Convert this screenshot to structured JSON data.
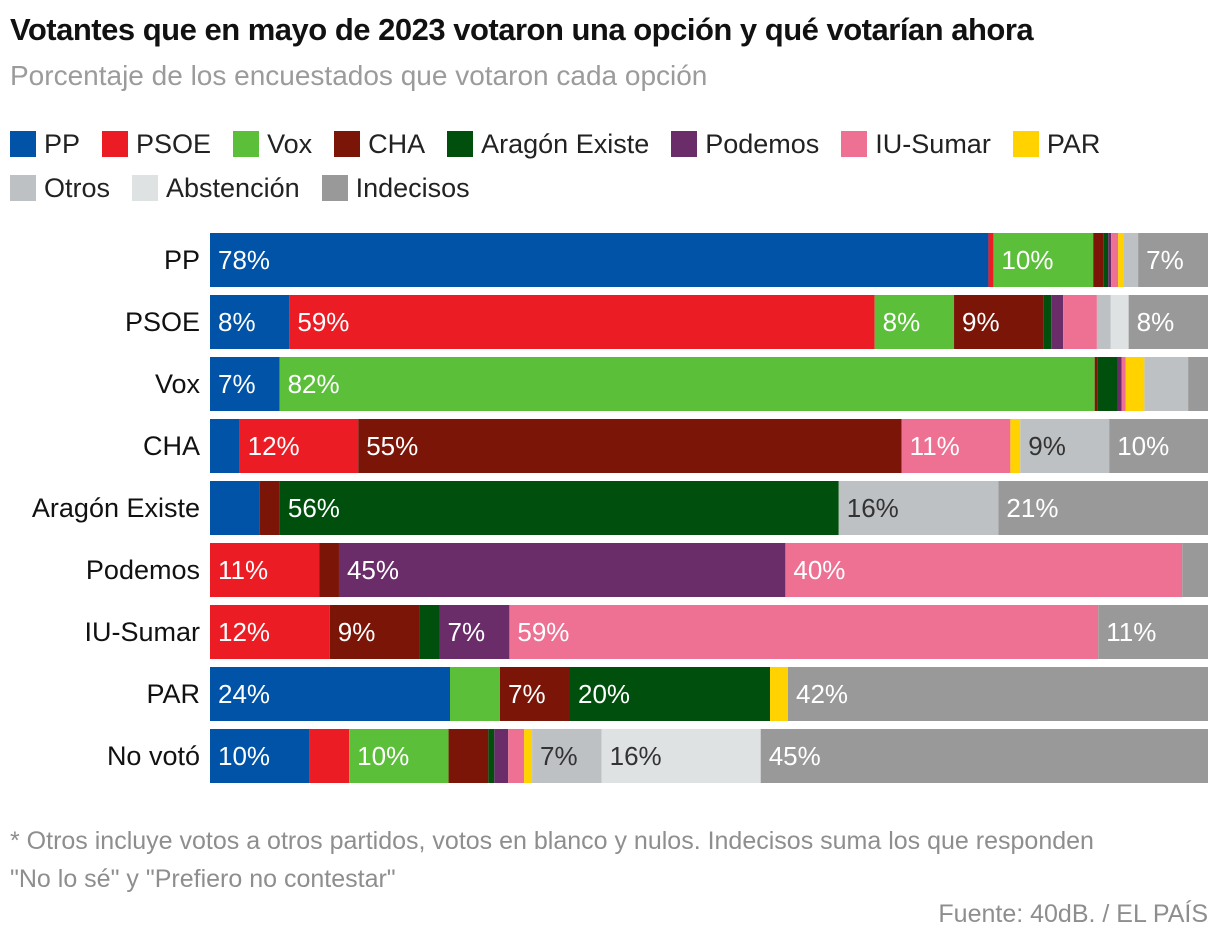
{
  "title": "Votantes que en mayo de 2023 votaron una opción y qué votarían ahora",
  "subtitle": "Porcentaje de los encuestados que votaron cada opción",
  "note": "* Otros incluye votos a otros partidos, votos en blanco y nulos. Indecisos suma los que responden \"No lo sé\" y \"Prefiero no contestar\"",
  "source": "Fuente: 40dB. / EL PAÍS",
  "legend_rows": [
    [
      0,
      1,
      2,
      3,
      4,
      5,
      6,
      7
    ],
    [
      8,
      9,
      10
    ]
  ],
  "chart_data": {
    "type": "bar",
    "orientation": "horizontal",
    "stacked": true,
    "xlim": [
      0,
      100
    ],
    "title": "Votantes que en mayo de 2023 votaron una opción y qué votarían ahora",
    "subtitle": "Porcentaje de los encuestados que votaron cada opción",
    "legend_position": "top",
    "categories": [
      "PP",
      "PSOE",
      "Vox",
      "CHA",
      "Aragón Existe",
      "Podemos",
      "IU-Sumar",
      "PAR",
      "No votó"
    ],
    "series": [
      {
        "name": "PP",
        "color": "#0053a6",
        "values": [
          78,
          8,
          7,
          3,
          5,
          0,
          0,
          24,
          10
        ]
      },
      {
        "name": "PSOE",
        "color": "#ec1c24",
        "values": [
          0.5,
          59,
          0,
          12,
          0,
          11,
          12,
          0,
          4
        ]
      },
      {
        "name": "Vox",
        "color": "#5bbf3a",
        "values": [
          10,
          8,
          82,
          0,
          0,
          0,
          0,
          5,
          10
        ]
      },
      {
        "name": "CHA",
        "color": "#7a1508",
        "values": [
          1,
          9,
          0.3,
          55,
          2,
          2,
          9,
          7,
          4
        ]
      },
      {
        "name": "Aragón Existe",
        "color": "#004f0c",
        "values": [
          0.5,
          0.8,
          2,
          0,
          56,
          0,
          2,
          20,
          0.6
        ]
      },
      {
        "name": "Podemos",
        "color": "#6a2d6a",
        "values": [
          0.3,
          1.2,
          0.4,
          0,
          0,
          45,
          7,
          0,
          1.4
        ]
      },
      {
        "name": "IU-Sumar",
        "color": "#ee7092",
        "values": [
          0.7,
          3.4,
          0.4,
          11,
          0,
          40,
          59,
          0,
          1.6
        ]
      },
      {
        "name": "PAR",
        "color": "#ffd200",
        "values": [
          0.5,
          0,
          1.9,
          1,
          0,
          0,
          0,
          1.8,
          0.8
        ]
      },
      {
        "name": "Otros",
        "color": "#bec1c4",
        "values": [
          1.5,
          1.4,
          4.4,
          9,
          16,
          0,
          0,
          0,
          7
        ]
      },
      {
        "name": "Abstención",
        "color": "#dfe2e3",
        "values": [
          0,
          1.8,
          0,
          0,
          0,
          0,
          0,
          0,
          16
        ]
      },
      {
        "name": "Indecisos",
        "color": "#999999",
        "values": [
          7,
          8,
          2,
          10,
          21,
          2.6,
          11,
          42,
          45
        ]
      }
    ],
    "data_labels": [
      [
        {
          "series": 0,
          "text": "78%"
        },
        {
          "series": 2,
          "text": "10%"
        },
        {
          "series": 10,
          "text": "7%"
        }
      ],
      [
        {
          "series": 0,
          "text": "8%"
        },
        {
          "series": 1,
          "text": "59%"
        },
        {
          "series": 2,
          "text": "8%"
        },
        {
          "series": 3,
          "text": "9%"
        },
        {
          "series": 10,
          "text": "8%"
        }
      ],
      [
        {
          "series": 0,
          "text": "7%"
        },
        {
          "series": 2,
          "text": "82%"
        }
      ],
      [
        {
          "series": 1,
          "text": "12%"
        },
        {
          "series": 3,
          "text": "55%"
        },
        {
          "series": 6,
          "text": "11%"
        },
        {
          "series": 8,
          "text": "9%"
        },
        {
          "series": 10,
          "text": "10%"
        }
      ],
      [
        {
          "series": 4,
          "text": "56%"
        },
        {
          "series": 8,
          "text": "16%"
        },
        {
          "series": 10,
          "text": "21%"
        }
      ],
      [
        {
          "series": 1,
          "text": "11%"
        },
        {
          "series": 5,
          "text": "45%"
        },
        {
          "series": 6,
          "text": "40%"
        }
      ],
      [
        {
          "series": 1,
          "text": "12%"
        },
        {
          "series": 3,
          "text": "9%"
        },
        {
          "series": 5,
          "text": "7%"
        },
        {
          "series": 6,
          "text": "59%"
        },
        {
          "series": 10,
          "text": "11%"
        }
      ],
      [
        {
          "series": 0,
          "text": "24%"
        },
        {
          "series": 3,
          "text": "7%"
        },
        {
          "series": 4,
          "text": "20%"
        },
        {
          "series": 10,
          "text": "42%"
        }
      ],
      [
        {
          "series": 0,
          "text": "10%"
        },
        {
          "series": 2,
          "text": "10%"
        },
        {
          "series": 8,
          "text": "7%"
        },
        {
          "series": 9,
          "text": "16%"
        },
        {
          "series": 10,
          "text": "45%"
        }
      ]
    ]
  }
}
